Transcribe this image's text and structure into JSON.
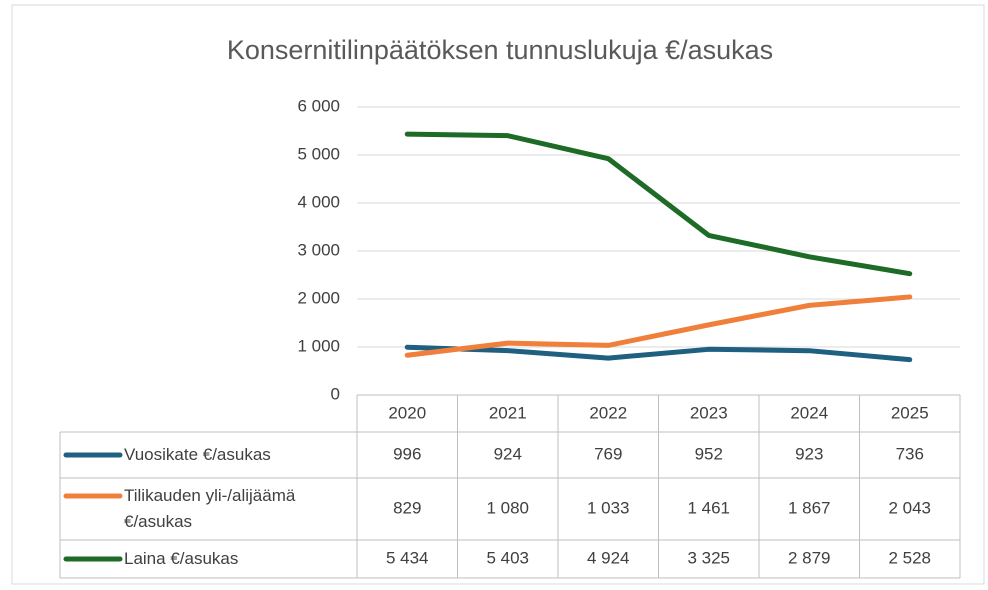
{
  "chart_data": {
    "type": "line",
    "title": "Konsernitilinpäätöksen tunnuslukuja €/asukas",
    "categories": [
      "2020",
      "2021",
      "2022",
      "2023",
      "2024",
      "2025"
    ],
    "series": [
      {
        "name": "Vuosikate €/asukas",
        "color": "#1f5f80",
        "values": [
          996,
          924,
          769,
          952,
          923,
          736
        ],
        "value_labels": [
          "996",
          "924",
          "769",
          "952",
          "923",
          "736"
        ]
      },
      {
        "name": "Tilikauden yli-/alijäämä €/asukas",
        "color": "#ef7f3a",
        "values": [
          829,
          1080,
          1033,
          1461,
          1867,
          2043
        ],
        "value_labels": [
          "829",
          "1 080",
          "1 033",
          "1 461",
          "1 867",
          "2 043"
        ]
      },
      {
        "name": "Laina €/asukas",
        "color": "#1d6b27",
        "values": [
          5434,
          5403,
          4924,
          3325,
          2879,
          2528
        ],
        "value_labels": [
          "5 434",
          "5 403",
          "4 924",
          "3 325",
          "2 879",
          "2 528"
        ]
      }
    ],
    "ylim": [
      0,
      6000
    ],
    "yticks": [
      0,
      {
        "value": 1000,
        "label": "1 000"
      },
      {
        "value": 2000,
        "label": "2 000"
      },
      {
        "value": 3000,
        "label": "3 000"
      },
      {
        "value": 4000,
        "label": "4 000"
      },
      {
        "value": 5000,
        "label": "5 000"
      },
      {
        "value": 6000,
        "label": "6 000"
      }
    ],
    "grid": true
  }
}
